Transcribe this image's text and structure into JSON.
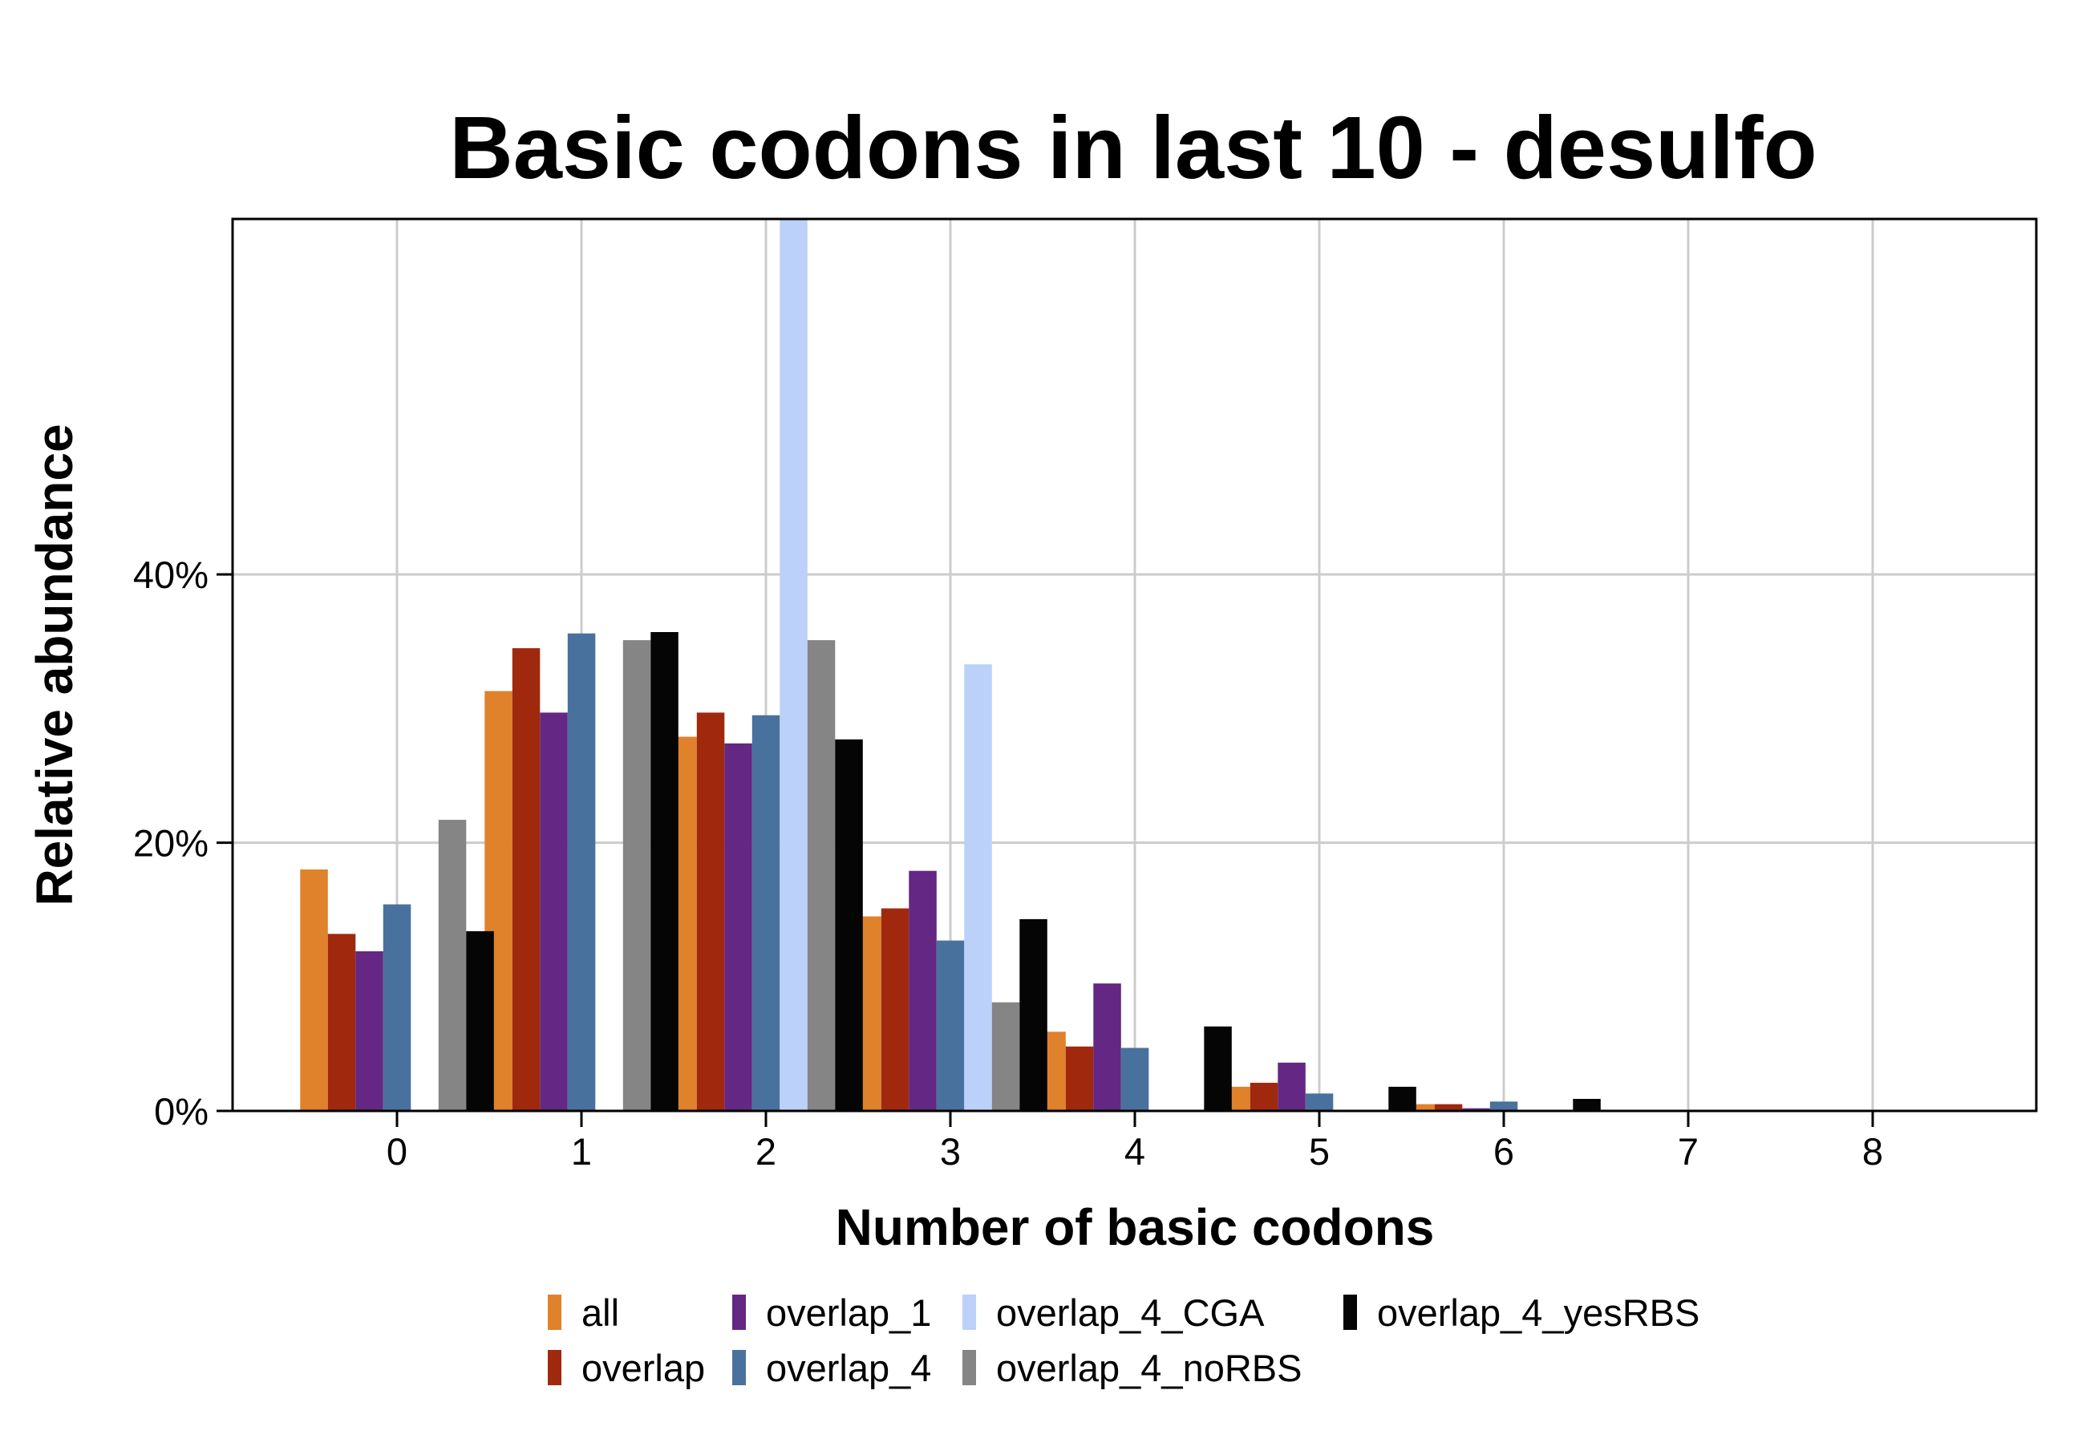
{
  "chart_data": {
    "type": "bar",
    "title": "Basic codons in last 10 - desulfo",
    "xlabel": "Number of basic codons",
    "ylabel": "Relative abundance",
    "categories": [
      "0",
      "1",
      "2",
      "3",
      "4",
      "5",
      "6",
      "7",
      "8"
    ],
    "yticks": [
      {
        "value": 0,
        "label": "0%"
      },
      {
        "value": 20,
        "label": "20%"
      },
      {
        "value": 40,
        "label": "40%"
      }
    ],
    "ylim": [
      0,
      66.5
    ],
    "grid": true,
    "legend_position": "bottom",
    "series": [
      {
        "name": "all",
        "color": "#E0812B",
        "values": [
          18.0,
          31.3,
          27.9,
          14.5,
          5.9,
          1.8,
          0.5,
          0,
          0
        ]
      },
      {
        "name": "overlap",
        "color": "#A0290D",
        "values": [
          13.2,
          34.5,
          29.7,
          15.1,
          4.8,
          2.1,
          0.5,
          0,
          0
        ]
      },
      {
        "name": "overlap_1",
        "color": "#642783",
        "values": [
          11.9,
          29.7,
          27.4,
          17.9,
          9.5,
          3.6,
          0.2,
          0,
          0
        ]
      },
      {
        "name": "overlap_4",
        "color": "#48729D",
        "values": [
          15.4,
          35.6,
          29.5,
          12.7,
          4.7,
          1.3,
          0.7,
          0,
          0
        ]
      },
      {
        "name": "overlap_4_CGA",
        "color": "#BCD1F9",
        "values": [
          0,
          0,
          66.5,
          33.3,
          0,
          0,
          0,
          0,
          0
        ]
      },
      {
        "name": "overlap_4_noRBS",
        "color": "#858585",
        "values": [
          21.7,
          35.1,
          35.1,
          8.1,
          0,
          0,
          0,
          0,
          0
        ]
      },
      {
        "name": "overlap_4_yesRBS",
        "color": "#050505",
        "values": [
          13.4,
          35.7,
          27.7,
          14.3,
          6.3,
          1.8,
          0.9,
          0,
          0
        ]
      }
    ]
  }
}
